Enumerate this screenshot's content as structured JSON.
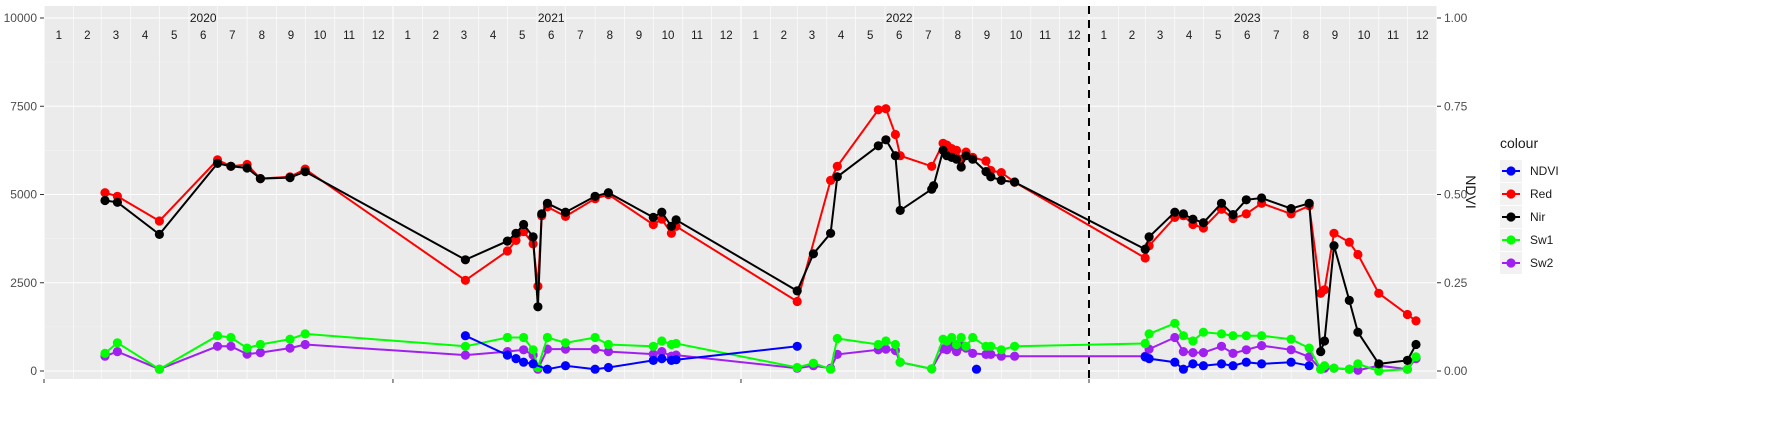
{
  "chart_data": {
    "type": "line",
    "ylabel_right": "NDVI",
    "ylim_left": [
      0,
      10000
    ],
    "ylim_right": [
      0,
      1
    ],
    "y_ticks_left": [
      "0",
      "2500",
      "5000",
      "7500",
      "10000"
    ],
    "y_ticks_right": [
      "0.00",
      "0.25",
      "0.50",
      "0.75",
      "1.00"
    ],
    "x_start": "2020-01-01",
    "x_end": "2024-01-01",
    "years": [
      "2020",
      "2021",
      "2022",
      "2023"
    ],
    "months": [
      "1",
      "2",
      "3",
      "4",
      "5",
      "6",
      "7",
      "8",
      "9",
      "10",
      "11",
      "12"
    ],
    "vline": "2023-01-01",
    "legend": {
      "title": "colour",
      "placement": "right",
      "entries": [
        "NDVI",
        "Red",
        "Nir",
        "Sw1",
        "Sw2"
      ]
    },
    "grid": true,
    "series": [
      {
        "name": "Red",
        "color": "#ff0000",
        "x": [
          "2020-03-05",
          "2020-03-18",
          "2020-05-01",
          "2020-07-01",
          "2020-07-15",
          "2020-08-01",
          "2020-08-15",
          "2020-09-15",
          "2020-10-01",
          "2021-03-18",
          "2021-05-01",
          "2021-05-10",
          "2021-05-18",
          "2021-05-28",
          "2021-06-02",
          "2021-06-06",
          "2021-06-12",
          "2021-07-01",
          "2021-08-01",
          "2021-08-15",
          "2021-10-01",
          "2021-10-10",
          "2021-10-20",
          "2021-10-25",
          "2022-03-01",
          "2022-04-05",
          "2022-04-12",
          "2022-05-25",
          "2022-06-02",
          "2022-06-12",
          "2022-06-17",
          "2022-07-20",
          "2022-08-01",
          "2022-08-05",
          "2022-08-10",
          "2022-08-15",
          "2022-08-20",
          "2022-08-25",
          "2022-09-01",
          "2022-09-15",
          "2022-09-20",
          "2022-10-01",
          "2022-10-15",
          "2023-03-01",
          "2023-03-05",
          "2023-04-01",
          "2023-04-10",
          "2023-04-20",
          "2023-05-01",
          "2023-05-20",
          "2023-06-01",
          "2023-06-15",
          "2023-07-01",
          "2023-08-01",
          "2023-08-20",
          "2023-09-01",
          "2023-09-05",
          "2023-09-15",
          "2023-10-01",
          "2023-10-10",
          "2023-11-01",
          "2023-12-01",
          "2023-12-10"
        ],
        "y": [
          5050,
          4950,
          4250,
          5980,
          5800,
          5850,
          5450,
          5500,
          5720,
          2570,
          3400,
          3700,
          3950,
          3600,
          2400,
          4400,
          4650,
          4380,
          4880,
          5000,
          4150,
          4300,
          3900,
          4100,
          1970,
          5400,
          5800,
          7400,
          7430,
          6700,
          6100,
          5800,
          6450,
          6400,
          6300,
          6250,
          6000,
          6200,
          6050,
          5950,
          5680,
          5620,
          5350,
          3200,
          3550,
          4350,
          4400,
          4150,
          4050,
          4580,
          4320,
          4450,
          4750,
          4450,
          4680,
          2200,
          2300,
          3900,
          3650,
          3300,
          2200,
          1600,
          1420
        ]
      },
      {
        "name": "Nir",
        "color": "#000000",
        "x": [
          "2020-03-05",
          "2020-03-18",
          "2020-05-01",
          "2020-07-01",
          "2020-07-15",
          "2020-08-01",
          "2020-08-15",
          "2020-09-15",
          "2020-10-01",
          "2021-03-18",
          "2021-05-01",
          "2021-05-10",
          "2021-05-18",
          "2021-05-28",
          "2021-06-02",
          "2021-06-06",
          "2021-06-12",
          "2021-07-01",
          "2021-08-01",
          "2021-08-15",
          "2021-10-01",
          "2021-10-10",
          "2021-10-20",
          "2021-10-25",
          "2022-03-01",
          "2022-03-18",
          "2022-04-05",
          "2022-04-12",
          "2022-05-25",
          "2022-06-02",
          "2022-06-12",
          "2022-06-17",
          "2022-07-20",
          "2022-07-22",
          "2022-08-01",
          "2022-08-05",
          "2022-08-10",
          "2022-08-15",
          "2022-08-20",
          "2022-08-25",
          "2022-09-01",
          "2022-09-15",
          "2022-09-20",
          "2022-10-01",
          "2022-10-15",
          "2023-03-01",
          "2023-03-05",
          "2023-04-01",
          "2023-04-10",
          "2023-04-20",
          "2023-05-01",
          "2023-05-20",
          "2023-06-01",
          "2023-06-15",
          "2023-07-01",
          "2023-08-01",
          "2023-08-20",
          "2023-09-01",
          "2023-09-05",
          "2023-09-15",
          "2023-10-01",
          "2023-10-10",
          "2023-11-01",
          "2023-12-01",
          "2023-12-10"
        ],
        "y": [
          4830,
          4780,
          3870,
          5880,
          5800,
          5750,
          5450,
          5480,
          5650,
          3150,
          3680,
          3900,
          4150,
          3800,
          1820,
          4450,
          4750,
          4500,
          4950,
          5050,
          4350,
          4500,
          4100,
          4280,
          2270,
          3320,
          3900,
          5500,
          6380,
          6550,
          6100,
          4550,
          5150,
          5250,
          6250,
          6100,
          6050,
          6000,
          5780,
          6100,
          6000,
          5650,
          5500,
          5400,
          5350,
          3450,
          3800,
          4500,
          4450,
          4300,
          4200,
          4750,
          4430,
          4850,
          4900,
          4600,
          4750,
          550,
          850,
          3550,
          2000,
          1100,
          200,
          300,
          750
        ]
      },
      {
        "name": "Sw1",
        "color": "#00ff00",
        "x": [
          "2020-03-05",
          "2020-03-18",
          "2020-05-01",
          "2020-07-01",
          "2020-07-15",
          "2020-08-01",
          "2020-08-15",
          "2020-09-15",
          "2020-10-01",
          "2021-03-18",
          "2021-05-01",
          "2021-05-18",
          "2021-05-28",
          "2021-06-02",
          "2021-06-12",
          "2021-07-01",
          "2021-08-01",
          "2021-08-15",
          "2021-10-01",
          "2021-10-10",
          "2021-10-20",
          "2021-10-25",
          "2022-03-01",
          "2022-03-18",
          "2022-04-05",
          "2022-04-12",
          "2022-05-25",
          "2022-06-02",
          "2022-06-12",
          "2022-06-17",
          "2022-07-20",
          "2022-08-01",
          "2022-08-05",
          "2022-08-10",
          "2022-08-15",
          "2022-08-20",
          "2022-08-25",
          "2022-09-01",
          "2022-09-15",
          "2022-09-20",
          "2022-10-01",
          "2022-10-15",
          "2023-03-01",
          "2023-03-05",
          "2023-04-01",
          "2023-04-10",
          "2023-04-20",
          "2023-05-01",
          "2023-05-20",
          "2023-06-01",
          "2023-06-15",
          "2023-07-01",
          "2023-08-01",
          "2023-08-20",
          "2023-09-01",
          "2023-09-05",
          "2023-09-15",
          "2023-10-01",
          "2023-10-10",
          "2023-11-01",
          "2023-12-01",
          "2023-12-10"
        ],
        "y": [
          500,
          800,
          50,
          1000,
          950,
          650,
          750,
          900,
          1050,
          700,
          950,
          950,
          600,
          100,
          950,
          800,
          950,
          750,
          700,
          850,
          750,
          780,
          100,
          220,
          50,
          920,
          750,
          850,
          750,
          250,
          60,
          900,
          850,
          950,
          750,
          950,
          700,
          950,
          700,
          700,
          600,
          700,
          780,
          1050,
          1350,
          1000,
          850,
          1100,
          1050,
          1000,
          1000,
          1000,
          900,
          650,
          50,
          150,
          80,
          50,
          200,
          0,
          50,
          400
        ]
      },
      {
        "name": "Sw2",
        "color": "#a020f0",
        "x": [
          "2020-03-05",
          "2020-03-18",
          "2020-05-01",
          "2020-07-01",
          "2020-07-15",
          "2020-08-01",
          "2020-08-15",
          "2020-09-15",
          "2020-10-01",
          "2021-03-18",
          "2021-05-01",
          "2021-05-18",
          "2021-05-28",
          "2021-06-02",
          "2021-06-12",
          "2021-07-01",
          "2021-08-01",
          "2021-08-15",
          "2021-10-01",
          "2021-10-10",
          "2021-10-20",
          "2021-10-25",
          "2022-03-01",
          "2022-03-18",
          "2022-04-05",
          "2022-04-12",
          "2022-05-25",
          "2022-06-02",
          "2022-06-12",
          "2022-06-17",
          "2022-07-20",
          "2022-08-01",
          "2022-08-05",
          "2022-08-10",
          "2022-08-15",
          "2022-08-20",
          "2022-08-25",
          "2022-09-01",
          "2022-09-15",
          "2022-09-20",
          "2022-10-01",
          "2022-10-15",
          "2023-03-01",
          "2023-03-05",
          "2023-04-01",
          "2023-04-10",
          "2023-04-20",
          "2023-05-01",
          "2023-05-20",
          "2023-06-01",
          "2023-06-15",
          "2023-07-01",
          "2023-08-01",
          "2023-08-20",
          "2023-09-01",
          "2023-09-05",
          "2023-09-15",
          "2023-10-01",
          "2023-10-10",
          "2023-11-01",
          "2023-12-01",
          "2023-12-10"
        ],
        "y": [
          420,
          550,
          50,
          700,
          700,
          480,
          520,
          650,
          750,
          450,
          550,
          600,
          450,
          50,
          620,
          620,
          620,
          550,
          480,
          550,
          420,
          450,
          80,
          150,
          80,
          470,
          600,
          620,
          580,
          250,
          60,
          630,
          600,
          700,
          550,
          700,
          650,
          500,
          470,
          470,
          420,
          420,
          420,
          620,
          950,
          550,
          520,
          520,
          700,
          500,
          600,
          720,
          600,
          400,
          50,
          80,
          80,
          50,
          20,
          150,
          50,
          350
        ]
      },
      {
        "name": "NDVI",
        "color": "#0000ff",
        "axis": "right",
        "x": [
          "2021-03-18",
          "2021-05-01",
          "2021-05-10",
          "2021-05-18",
          "2021-05-28",
          "2021-06-12",
          "2021-07-01",
          "2021-08-01",
          "2021-08-15",
          "2021-10-01",
          "2021-10-10",
          "2021-10-20",
          "2021-10-25",
          "2022-03-01"
        ],
        "y": [
          0.1,
          0.045,
          0.035,
          0.025,
          0.02,
          0.005,
          0.015,
          0.005,
          0.01,
          0.03,
          0.035,
          0.03,
          0.032,
          0.07
        ]
      },
      {
        "name": "NDVI",
        "color": "#0000ff",
        "axis": "right",
        "points_only": true,
        "x": [
          "2022-09-05"
        ],
        "y": [
          0.005
        ]
      },
      {
        "name": "NDVI",
        "color": "#0000ff",
        "axis": "right",
        "x": [
          "2023-03-01",
          "2023-03-05",
          "2023-04-01",
          "2023-04-10",
          "2023-04-20",
          "2023-05-01",
          "2023-05-20",
          "2023-06-01",
          "2023-06-15",
          "2023-07-01",
          "2023-08-01",
          "2023-08-20"
        ],
        "y": [
          0.04,
          0.035,
          0.025,
          0.005,
          0.02,
          0.015,
          0.02,
          0.015,
          0.025,
          0.02,
          0.025,
          0.015
        ]
      }
    ]
  }
}
